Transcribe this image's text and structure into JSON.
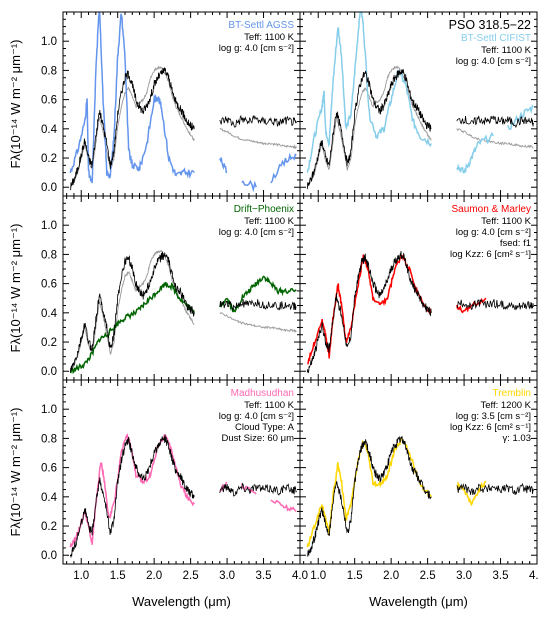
{
  "chart_data": {
    "type": "line",
    "object_name": "PSO 318.5−22",
    "xlabel": "Wavelength (μm)",
    "ylabel": "Fλ(10⁻¹⁴ W m⁻² μm⁻¹)",
    "xlim": [
      0.75,
      4.0
    ],
    "ylim": [
      -0.06,
      1.2
    ],
    "x_ticks": [
      "1.0",
      "1.5",
      "2.0",
      "2.5",
      "3.0",
      "3.5",
      "4.0"
    ],
    "y_ticks": [
      "0.0",
      "0.2",
      "0.4",
      "0.6",
      "0.8",
      "1.0"
    ],
    "panels": [
      {
        "model": "BT-Settl AGSS",
        "color": "#6495ED",
        "params": [
          "T_eff: 1100 K",
          "log g: 4.0 [cm s⁻²]"
        ],
        "model_curve": [
          [
            0.85,
            0.1
          ],
          [
            0.95,
            0.25
          ],
          [
            1.05,
            0.45
          ],
          [
            1.08,
            0.6
          ],
          [
            1.1,
            0.1
          ],
          [
            1.15,
            0.02
          ],
          [
            1.2,
            0.8
          ],
          [
            1.25,
            1.25
          ],
          [
            1.3,
            0.6
          ],
          [
            1.35,
            0.1
          ],
          [
            1.4,
            0.08
          ],
          [
            1.45,
            0.35
          ],
          [
            1.5,
            0.9
          ],
          [
            1.55,
            1.2
          ],
          [
            1.6,
            0.9
          ],
          [
            1.65,
            0.25
          ],
          [
            1.7,
            0.15
          ],
          [
            1.8,
            0.13
          ],
          [
            1.9,
            0.3
          ],
          [
            2.0,
            0.6
          ],
          [
            2.05,
            0.62
          ],
          [
            2.1,
            0.55
          ],
          [
            2.2,
            0.2
          ],
          [
            2.3,
            0.08
          ],
          [
            2.4,
            0.1
          ],
          [
            2.55,
            0.1
          ],
          [
            2.9,
            0.2
          ],
          [
            3.0,
            0.1
          ],
          [
            3.2,
            0.05
          ],
          [
            3.4,
            0.0
          ],
          [
            3.6,
            0.05
          ],
          [
            3.8,
            0.18
          ],
          [
            3.95,
            0.22
          ]
        ]
      },
      {
        "model": "BT-Settl CIFIST",
        "color": "#87CEEB",
        "params": [
          "T_eff: 1100 K",
          "log g: 4.0 [cm s⁻²]"
        ],
        "model_curve": [
          [
            0.85,
            0.1
          ],
          [
            0.95,
            0.35
          ],
          [
            1.05,
            0.55
          ],
          [
            1.08,
            0.65
          ],
          [
            1.1,
            0.4
          ],
          [
            1.15,
            0.3
          ],
          [
            1.2,
            0.7
          ],
          [
            1.27,
            1.1
          ],
          [
            1.32,
            0.9
          ],
          [
            1.38,
            0.4
          ],
          [
            1.45,
            0.5
          ],
          [
            1.52,
            0.9
          ],
          [
            1.58,
            1.25
          ],
          [
            1.62,
            1.1
          ],
          [
            1.7,
            0.5
          ],
          [
            1.8,
            0.35
          ],
          [
            1.9,
            0.4
          ],
          [
            2.0,
            0.6
          ],
          [
            2.1,
            0.8
          ],
          [
            2.2,
            0.7
          ],
          [
            2.3,
            0.45
          ],
          [
            2.4,
            0.35
          ],
          [
            2.55,
            0.3
          ],
          [
            2.9,
            0.15
          ],
          [
            3.0,
            0.1
          ],
          [
            3.1,
            0.2
          ],
          [
            3.2,
            0.3
          ],
          [
            3.4,
            0.35
          ],
          [
            3.6,
            0.4
          ],
          [
            3.8,
            0.5
          ],
          [
            3.95,
            0.55
          ]
        ]
      },
      {
        "model": "Drift−Phoenix",
        "color": "#006400",
        "params": [
          "T_eff: 1100 K",
          "log g: 4.0 [cm s⁻²]"
        ],
        "model_curve": [
          [
            0.85,
            0.0
          ],
          [
            0.95,
            0.02
          ],
          [
            1.05,
            0.05
          ],
          [
            1.15,
            0.12
          ],
          [
            1.25,
            0.22
          ],
          [
            1.35,
            0.25
          ],
          [
            1.45,
            0.3
          ],
          [
            1.55,
            0.35
          ],
          [
            1.65,
            0.38
          ],
          [
            1.75,
            0.4
          ],
          [
            1.85,
            0.45
          ],
          [
            1.95,
            0.5
          ],
          [
            2.05,
            0.55
          ],
          [
            2.15,
            0.6
          ],
          [
            2.25,
            0.58
          ],
          [
            2.35,
            0.5
          ],
          [
            2.45,
            0.45
          ],
          [
            2.55,
            0.4
          ],
          [
            2.9,
            0.45
          ],
          [
            3.0,
            0.5
          ],
          [
            3.1,
            0.4
          ],
          [
            3.2,
            0.5
          ],
          [
            3.3,
            0.55
          ],
          [
            3.4,
            0.6
          ],
          [
            3.5,
            0.65
          ],
          [
            3.6,
            0.6
          ],
          [
            3.7,
            0.55
          ],
          [
            3.8,
            0.55
          ],
          [
            3.95,
            0.55
          ]
        ]
      },
      {
        "model": "Saumon & Marley",
        "color": "#FF0000",
        "params": [
          "T_eff: 1100 K",
          "log g: 4.0 [cm s⁻²]",
          "f_sed: f1",
          "log K_zz: 6 [cm² s⁻¹]"
        ],
        "model_curve": [
          [
            0.85,
            0.05
          ],
          [
            0.95,
            0.2
          ],
          [
            1.05,
            0.35
          ],
          [
            1.1,
            0.25
          ],
          [
            1.15,
            0.1
          ],
          [
            1.2,
            0.35
          ],
          [
            1.27,
            0.6
          ],
          [
            1.32,
            0.45
          ],
          [
            1.38,
            0.2
          ],
          [
            1.45,
            0.3
          ],
          [
            1.55,
            0.6
          ],
          [
            1.62,
            0.8
          ],
          [
            1.68,
            0.7
          ],
          [
            1.75,
            0.5
          ],
          [
            1.85,
            0.45
          ],
          [
            1.95,
            0.5
          ],
          [
            2.05,
            0.7
          ],
          [
            2.15,
            0.8
          ],
          [
            2.25,
            0.7
          ],
          [
            2.35,
            0.55
          ],
          [
            2.45,
            0.45
          ],
          [
            2.55,
            0.4
          ],
          [
            2.9,
            0.45
          ],
          [
            3.0,
            0.4
          ],
          [
            3.1,
            0.45
          ],
          [
            3.3,
            0.5
          ],
          [
            3.5,
            0.45
          ],
          [
            3.7,
            0.4
          ],
          [
            3.95,
            0.37
          ]
        ]
      },
      {
        "model": "Madhusudhan",
        "color": "#FF69B4",
        "params": [
          "T_eff: 1100 K",
          "log g: 4.0 [cm s⁻²]",
          "Cloud Type: A",
          "Dust Size: 60 μm"
        ],
        "model_curve": [
          [
            0.85,
            0.05
          ],
          [
            0.95,
            0.15
          ],
          [
            1.05,
            0.3
          ],
          [
            1.1,
            0.2
          ],
          [
            1.15,
            0.08
          ],
          [
            1.2,
            0.35
          ],
          [
            1.27,
            0.65
          ],
          [
            1.32,
            0.5
          ],
          [
            1.38,
            0.25
          ],
          [
            1.45,
            0.35
          ],
          [
            1.55,
            0.7
          ],
          [
            1.62,
            0.82
          ],
          [
            1.68,
            0.75
          ],
          [
            1.75,
            0.55
          ],
          [
            1.85,
            0.5
          ],
          [
            1.95,
            0.55
          ],
          [
            2.05,
            0.75
          ],
          [
            2.15,
            0.82
          ],
          [
            2.25,
            0.7
          ],
          [
            2.35,
            0.5
          ],
          [
            2.45,
            0.4
          ],
          [
            2.55,
            0.35
          ],
          [
            2.9,
            0.45
          ],
          [
            3.0,
            0.5
          ],
          [
            3.2,
            0.48
          ],
          [
            3.4,
            0.42
          ],
          [
            3.6,
            0.38
          ],
          [
            3.8,
            0.33
          ],
          [
            3.95,
            0.3
          ]
        ]
      },
      {
        "model": "Tremblin",
        "color": "#FFD700",
        "params": [
          "T_eff: 1200 K",
          "log g: 3.5 [cm s⁻²]",
          "log K_zz: 6 [cm² s⁻¹]",
          "γ: 1.03"
        ],
        "model_curve": [
          [
            0.85,
            0.05
          ],
          [
            0.95,
            0.2
          ],
          [
            1.05,
            0.35
          ],
          [
            1.1,
            0.25
          ],
          [
            1.15,
            0.15
          ],
          [
            1.2,
            0.4
          ],
          [
            1.27,
            0.62
          ],
          [
            1.32,
            0.5
          ],
          [
            1.38,
            0.25
          ],
          [
            1.45,
            0.35
          ],
          [
            1.55,
            0.65
          ],
          [
            1.62,
            0.78
          ],
          [
            1.68,
            0.7
          ],
          [
            1.75,
            0.5
          ],
          [
            1.85,
            0.48
          ],
          [
            1.95,
            0.55
          ],
          [
            2.05,
            0.72
          ],
          [
            2.15,
            0.8
          ],
          [
            2.25,
            0.7
          ],
          [
            2.35,
            0.55
          ],
          [
            2.45,
            0.45
          ],
          [
            2.55,
            0.4
          ],
          [
            2.9,
            0.48
          ],
          [
            3.0,
            0.45
          ],
          [
            3.1,
            0.35
          ],
          [
            3.2,
            0.45
          ],
          [
            3.3,
            0.5
          ],
          [
            3.5,
            0.47
          ],
          [
            3.7,
            0.45
          ],
          [
            3.95,
            0.48
          ]
        ]
      }
    ],
    "observed": [
      [
        0.85,
        0.0
      ],
      [
        0.9,
        0.05
      ],
      [
        0.95,
        0.12
      ],
      [
        1.0,
        0.22
      ],
      [
        1.05,
        0.32
      ],
      [
        1.1,
        0.2
      ],
      [
        1.15,
        0.15
      ],
      [
        1.2,
        0.35
      ],
      [
        1.25,
        0.52
      ],
      [
        1.3,
        0.42
      ],
      [
        1.35,
        0.3
      ],
      [
        1.4,
        0.15
      ],
      [
        1.45,
        0.25
      ],
      [
        1.5,
        0.5
      ],
      [
        1.55,
        0.65
      ],
      [
        1.6,
        0.75
      ],
      [
        1.65,
        0.78
      ],
      [
        1.7,
        0.7
      ],
      [
        1.75,
        0.6
      ],
      [
        1.8,
        0.55
      ],
      [
        1.85,
        0.52
      ],
      [
        1.9,
        0.56
      ],
      [
        1.95,
        0.62
      ],
      [
        2.0,
        0.7
      ],
      [
        2.05,
        0.75
      ],
      [
        2.1,
        0.78
      ],
      [
        2.15,
        0.8
      ],
      [
        2.2,
        0.75
      ],
      [
        2.25,
        0.65
      ],
      [
        2.3,
        0.58
      ],
      [
        2.35,
        0.55
      ],
      [
        2.4,
        0.5
      ],
      [
        2.45,
        0.45
      ],
      [
        2.5,
        0.42
      ],
      [
        2.55,
        0.4
      ],
      [
        2.9,
        0.45
      ],
      [
        3.0,
        0.47
      ],
      [
        3.1,
        0.43
      ],
      [
        3.2,
        0.47
      ],
      [
        3.3,
        0.45
      ],
      [
        3.4,
        0.47
      ],
      [
        3.5,
        0.45
      ],
      [
        3.6,
        0.46
      ],
      [
        3.7,
        0.44
      ],
      [
        3.8,
        0.46
      ],
      [
        3.9,
        0.45
      ],
      [
        3.95,
        0.44
      ]
    ],
    "comparison": [
      [
        0.85,
        0.0
      ],
      [
        0.9,
        0.04
      ],
      [
        0.95,
        0.1
      ],
      [
        1.0,
        0.2
      ],
      [
        1.05,
        0.3
      ],
      [
        1.1,
        0.18
      ],
      [
        1.15,
        0.12
      ],
      [
        1.2,
        0.3
      ],
      [
        1.25,
        0.48
      ],
      [
        1.3,
        0.38
      ],
      [
        1.35,
        0.25
      ],
      [
        1.4,
        0.12
      ],
      [
        1.45,
        0.2
      ],
      [
        1.5,
        0.42
      ],
      [
        1.55,
        0.55
      ],
      [
        1.6,
        0.65
      ],
      [
        1.65,
        0.68
      ],
      [
        1.7,
        0.62
      ],
      [
        1.75,
        0.55
      ],
      [
        1.8,
        0.58
      ],
      [
        1.85,
        0.6
      ],
      [
        1.9,
        0.65
      ],
      [
        1.95,
        0.75
      ],
      [
        2.0,
        0.8
      ],
      [
        2.05,
        0.82
      ],
      [
        2.1,
        0.82
      ],
      [
        2.15,
        0.78
      ],
      [
        2.2,
        0.72
      ],
      [
        2.25,
        0.62
      ],
      [
        2.3,
        0.55
      ],
      [
        2.35,
        0.5
      ],
      [
        2.4,
        0.45
      ],
      [
        2.45,
        0.4
      ],
      [
        2.5,
        0.36
      ],
      [
        2.55,
        0.32
      ],
      [
        2.9,
        0.4
      ],
      [
        3.0,
        0.38
      ],
      [
        3.1,
        0.35
      ],
      [
        3.2,
        0.33
      ],
      [
        3.3,
        0.32
      ],
      [
        3.4,
        0.31
      ],
      [
        3.5,
        0.3
      ],
      [
        3.6,
        0.3
      ],
      [
        3.7,
        0.29
      ],
      [
        3.8,
        0.28
      ],
      [
        3.9,
        0.28
      ],
      [
        3.95,
        0.27
      ]
    ]
  }
}
